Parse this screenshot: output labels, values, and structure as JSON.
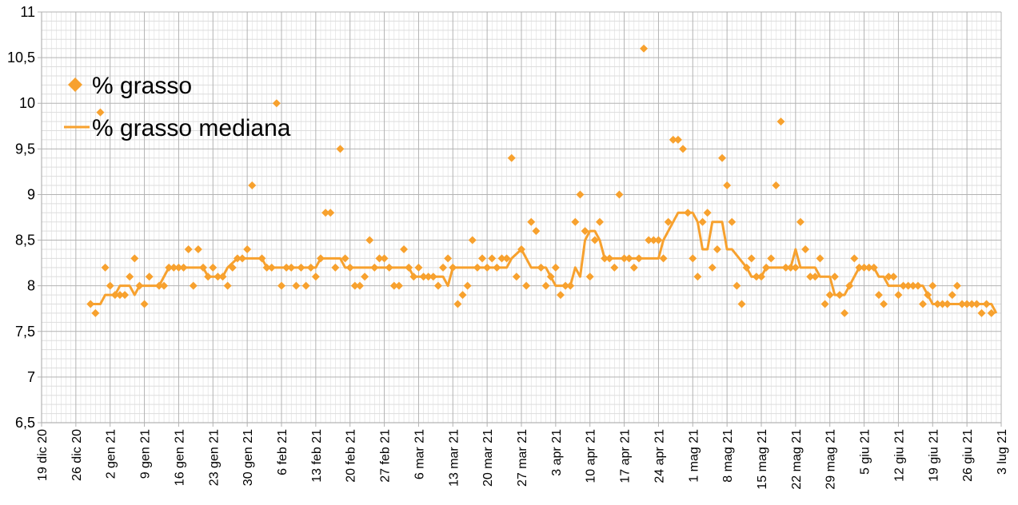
{
  "chart_data": {
    "type": "line",
    "title": "",
    "xlabel": "",
    "ylabel": "",
    "grid": true,
    "legend_position": "top-left",
    "colors": {
      "series": "#f7a12e",
      "grid_major": "#b3b3b3",
      "grid_minor": "#dddddd",
      "axis": "#b3b3b3"
    },
    "xlim": [
      "2020-12-19",
      "2021-07-03"
    ],
    "ylim": [
      6.5,
      11
    ],
    "y_ticks": [
      "6,5",
      "7",
      "7,5",
      "8",
      "8,5",
      "9",
      "9,5",
      "10",
      "10,5",
      "11"
    ],
    "x_tick_labels": [
      "19 dic 20",
      "26 dic 20",
      "2 gen 21",
      "9 gen 21",
      "16 gen 21",
      "23 gen 21",
      "30 gen 21",
      "6 feb 21",
      "13 feb 21",
      "20 feb 21",
      "27 feb 21",
      "6 mar 21",
      "13 mar 21",
      "20 mar 21",
      "27 mar 21",
      "3 apr 21",
      "10 apr 21",
      "17 apr 21",
      "24 apr 21",
      "1 mag 21",
      "8 mag 21",
      "15 mag 21",
      "22 mag 21",
      "29 mag 21",
      "5 giu 21",
      "12 giu 21",
      "19 giu 21",
      "26 giu 21",
      "3 lug 21"
    ],
    "x_tick_dates": [
      "2020-12-19",
      "2020-12-26",
      "2021-01-02",
      "2021-01-09",
      "2021-01-16",
      "2021-01-23",
      "2021-01-30",
      "2021-02-06",
      "2021-02-13",
      "2021-02-20",
      "2021-02-27",
      "2021-03-06",
      "2021-03-13",
      "2021-03-20",
      "2021-03-27",
      "2021-04-03",
      "2021-04-10",
      "2021-04-17",
      "2021-04-24",
      "2021-05-01",
      "2021-05-08",
      "2021-05-15",
      "2021-05-22",
      "2021-05-29",
      "2021-06-05",
      "2021-06-12",
      "2021-06-19",
      "2021-06-26",
      "2021-07-03"
    ],
    "series": [
      {
        "name": "% grasso",
        "style": "markers-diamond",
        "points": [
          [
            "2020-12-29",
            7.8
          ],
          [
            "2020-12-30",
            7.7
          ],
          [
            "2020-12-31",
            9.9
          ],
          [
            "2021-01-01",
            8.2
          ],
          [
            "2021-01-02",
            8.0
          ],
          [
            "2021-01-03",
            7.9
          ],
          [
            "2021-01-04",
            7.9
          ],
          [
            "2021-01-05",
            7.9
          ],
          [
            "2021-01-06",
            8.1
          ],
          [
            "2021-01-07",
            8.3
          ],
          [
            "2021-01-08",
            8.0
          ],
          [
            "2021-01-09",
            7.8
          ],
          [
            "2021-01-10",
            8.1
          ],
          [
            "2021-01-12",
            8.0
          ],
          [
            "2021-01-13",
            8.0
          ],
          [
            "2021-01-14",
            8.2
          ],
          [
            "2021-01-15",
            8.2
          ],
          [
            "2021-01-16",
            8.2
          ],
          [
            "2021-01-17",
            8.2
          ],
          [
            "2021-01-18",
            8.4
          ],
          [
            "2021-01-19",
            8.0
          ],
          [
            "2021-01-20",
            8.4
          ],
          [
            "2021-01-21",
            8.2
          ],
          [
            "2021-01-22",
            8.1
          ],
          [
            "2021-01-23",
            8.2
          ],
          [
            "2021-01-24",
            8.1
          ],
          [
            "2021-01-25",
            8.1
          ],
          [
            "2021-01-26",
            8.0
          ],
          [
            "2021-01-27",
            8.2
          ],
          [
            "2021-01-28",
            8.3
          ],
          [
            "2021-01-29",
            8.3
          ],
          [
            "2021-01-30",
            8.4
          ],
          [
            "2021-01-31",
            9.1
          ],
          [
            "2021-02-02",
            8.3
          ],
          [
            "2021-02-03",
            8.2
          ],
          [
            "2021-02-04",
            8.2
          ],
          [
            "2021-02-05",
            10.0
          ],
          [
            "2021-02-06",
            8.0
          ],
          [
            "2021-02-07",
            8.2
          ],
          [
            "2021-02-08",
            8.2
          ],
          [
            "2021-02-09",
            8.0
          ],
          [
            "2021-02-10",
            8.2
          ],
          [
            "2021-02-11",
            8.0
          ],
          [
            "2021-02-12",
            8.2
          ],
          [
            "2021-02-13",
            8.1
          ],
          [
            "2021-02-14",
            8.3
          ],
          [
            "2021-02-15",
            8.8
          ],
          [
            "2021-02-16",
            8.8
          ],
          [
            "2021-02-17",
            8.2
          ],
          [
            "2021-02-18",
            9.5
          ],
          [
            "2021-02-19",
            8.3
          ],
          [
            "2021-02-20",
            8.2
          ],
          [
            "2021-02-21",
            8.0
          ],
          [
            "2021-02-22",
            8.0
          ],
          [
            "2021-02-23",
            8.1
          ],
          [
            "2021-02-24",
            8.5
          ],
          [
            "2021-02-25",
            8.2
          ],
          [
            "2021-02-26",
            8.3
          ],
          [
            "2021-02-27",
            8.3
          ],
          [
            "2021-02-28",
            8.2
          ],
          [
            "2021-03-01",
            8.0
          ],
          [
            "2021-03-02",
            8.0
          ],
          [
            "2021-03-03",
            8.4
          ],
          [
            "2021-03-04",
            8.2
          ],
          [
            "2021-03-05",
            8.1
          ],
          [
            "2021-03-06",
            8.2
          ],
          [
            "2021-03-07",
            8.1
          ],
          [
            "2021-03-08",
            8.1
          ],
          [
            "2021-03-09",
            8.1
          ],
          [
            "2021-03-10",
            8.0
          ],
          [
            "2021-03-11",
            8.2
          ],
          [
            "2021-03-12",
            8.3
          ],
          [
            "2021-03-13",
            8.2
          ],
          [
            "2021-03-14",
            7.8
          ],
          [
            "2021-03-15",
            7.9
          ],
          [
            "2021-03-16",
            8.0
          ],
          [
            "2021-03-17",
            8.5
          ],
          [
            "2021-03-18",
            8.2
          ],
          [
            "2021-03-19",
            8.3
          ],
          [
            "2021-03-20",
            8.2
          ],
          [
            "2021-03-21",
            8.3
          ],
          [
            "2021-03-22",
            8.2
          ],
          [
            "2021-03-23",
            8.3
          ],
          [
            "2021-03-24",
            8.3
          ],
          [
            "2021-03-25",
            9.4
          ],
          [
            "2021-03-26",
            8.1
          ],
          [
            "2021-03-27",
            8.4
          ],
          [
            "2021-03-28",
            8.0
          ],
          [
            "2021-03-29",
            8.7
          ],
          [
            "2021-03-30",
            8.6
          ],
          [
            "2021-03-31",
            8.2
          ],
          [
            "2021-04-01",
            8.0
          ],
          [
            "2021-04-02",
            8.1
          ],
          [
            "2021-04-03",
            8.2
          ],
          [
            "2021-04-04",
            7.9
          ],
          [
            "2021-04-05",
            8.0
          ],
          [
            "2021-04-06",
            8.0
          ],
          [
            "2021-04-07",
            8.7
          ],
          [
            "2021-04-08",
            9.0
          ],
          [
            "2021-04-09",
            8.6
          ],
          [
            "2021-04-10",
            8.1
          ],
          [
            "2021-04-11",
            8.5
          ],
          [
            "2021-04-12",
            8.7
          ],
          [
            "2021-04-13",
            8.3
          ],
          [
            "2021-04-14",
            8.3
          ],
          [
            "2021-04-15",
            8.2
          ],
          [
            "2021-04-16",
            9.0
          ],
          [
            "2021-04-17",
            8.3
          ],
          [
            "2021-04-18",
            8.3
          ],
          [
            "2021-04-19",
            8.2
          ],
          [
            "2021-04-20",
            8.3
          ],
          [
            "2021-04-21",
            10.6
          ],
          [
            "2021-04-22",
            8.5
          ],
          [
            "2021-04-23",
            8.5
          ],
          [
            "2021-04-24",
            8.5
          ],
          [
            "2021-04-25",
            8.3
          ],
          [
            "2021-04-26",
            8.7
          ],
          [
            "2021-04-27",
            9.6
          ],
          [
            "2021-04-28",
            9.6
          ],
          [
            "2021-04-29",
            9.5
          ],
          [
            "2021-04-30",
            8.8
          ],
          [
            "2021-05-01",
            8.3
          ],
          [
            "2021-05-02",
            8.1
          ],
          [
            "2021-05-03",
            8.7
          ],
          [
            "2021-05-04",
            8.8
          ],
          [
            "2021-05-05",
            8.2
          ],
          [
            "2021-05-06",
            8.4
          ],
          [
            "2021-05-07",
            9.4
          ],
          [
            "2021-05-08",
            9.1
          ],
          [
            "2021-05-09",
            8.7
          ],
          [
            "2021-05-10",
            8.0
          ],
          [
            "2021-05-11",
            7.8
          ],
          [
            "2021-05-12",
            8.2
          ],
          [
            "2021-05-13",
            8.3
          ],
          [
            "2021-05-14",
            8.1
          ],
          [
            "2021-05-15",
            8.1
          ],
          [
            "2021-05-16",
            8.2
          ],
          [
            "2021-05-17",
            8.3
          ],
          [
            "2021-05-18",
            9.1
          ],
          [
            "2021-05-19",
            9.8
          ],
          [
            "2021-05-20",
            8.2
          ],
          [
            "2021-05-21",
            8.2
          ],
          [
            "2021-05-22",
            8.2
          ],
          [
            "2021-05-23",
            8.7
          ],
          [
            "2021-05-24",
            8.4
          ],
          [
            "2021-05-25",
            8.1
          ],
          [
            "2021-05-26",
            8.1
          ],
          [
            "2021-05-27",
            8.3
          ],
          [
            "2021-05-28",
            7.8
          ],
          [
            "2021-05-29",
            7.9
          ],
          [
            "2021-05-30",
            8.1
          ],
          [
            "2021-05-31",
            7.9
          ],
          [
            "2021-06-01",
            7.7
          ],
          [
            "2021-06-02",
            8.0
          ],
          [
            "2021-06-03",
            8.3
          ],
          [
            "2021-06-04",
            8.2
          ],
          [
            "2021-06-05",
            8.2
          ],
          [
            "2021-06-06",
            8.2
          ],
          [
            "2021-06-07",
            8.2
          ],
          [
            "2021-06-08",
            7.9
          ],
          [
            "2021-06-09",
            7.8
          ],
          [
            "2021-06-10",
            8.1
          ],
          [
            "2021-06-11",
            8.1
          ],
          [
            "2021-06-12",
            7.9
          ],
          [
            "2021-06-13",
            8.0
          ],
          [
            "2021-06-14",
            8.0
          ],
          [
            "2021-06-15",
            8.0
          ],
          [
            "2021-06-16",
            8.0
          ],
          [
            "2021-06-17",
            7.8
          ],
          [
            "2021-06-18",
            7.9
          ],
          [
            "2021-06-19",
            8.0
          ],
          [
            "2021-06-20",
            7.8
          ],
          [
            "2021-06-21",
            7.8
          ],
          [
            "2021-06-22",
            7.8
          ],
          [
            "2021-06-23",
            7.9
          ],
          [
            "2021-06-24",
            8.0
          ],
          [
            "2021-06-25",
            7.8
          ],
          [
            "2021-06-26",
            7.8
          ],
          [
            "2021-06-27",
            7.8
          ],
          [
            "2021-06-28",
            7.8
          ],
          [
            "2021-06-29",
            7.7
          ],
          [
            "2021-06-30",
            7.8
          ],
          [
            "2021-07-01",
            7.7
          ]
        ]
      },
      {
        "name": "% grasso mediana",
        "style": "line",
        "points": [
          [
            "2020-12-29",
            7.8
          ],
          [
            "2020-12-31",
            7.8
          ],
          [
            "2021-01-01",
            7.9
          ],
          [
            "2021-01-03",
            7.9
          ],
          [
            "2021-01-04",
            8.0
          ],
          [
            "2021-01-06",
            8.0
          ],
          [
            "2021-01-07",
            7.9
          ],
          [
            "2021-01-08",
            8.0
          ],
          [
            "2021-01-12",
            8.0
          ],
          [
            "2021-01-13",
            8.1
          ],
          [
            "2021-01-14",
            8.2
          ],
          [
            "2021-01-21",
            8.2
          ],
          [
            "2021-01-22",
            8.1
          ],
          [
            "2021-01-25",
            8.1
          ],
          [
            "2021-01-26",
            8.2
          ],
          [
            "2021-01-28",
            8.3
          ],
          [
            "2021-02-02",
            8.3
          ],
          [
            "2021-02-03",
            8.2
          ],
          [
            "2021-02-13",
            8.2
          ],
          [
            "2021-02-14",
            8.3
          ],
          [
            "2021-02-18",
            8.3
          ],
          [
            "2021-02-19",
            8.2
          ],
          [
            "2021-03-04",
            8.2
          ],
          [
            "2021-03-05",
            8.1
          ],
          [
            "2021-03-11",
            8.1
          ],
          [
            "2021-03-12",
            8.0
          ],
          [
            "2021-03-13",
            8.2
          ],
          [
            "2021-03-24",
            8.2
          ],
          [
            "2021-03-25",
            8.3
          ],
          [
            "2021-03-27",
            8.4
          ],
          [
            "2021-03-29",
            8.2
          ],
          [
            "2021-04-01",
            8.2
          ],
          [
            "2021-04-02",
            8.1
          ],
          [
            "2021-04-03",
            8.0
          ],
          [
            "2021-04-06",
            8.0
          ],
          [
            "2021-04-07",
            8.2
          ],
          [
            "2021-04-08",
            8.1
          ],
          [
            "2021-04-09",
            8.5
          ],
          [
            "2021-04-10",
            8.6
          ],
          [
            "2021-04-11",
            8.6
          ],
          [
            "2021-04-12",
            8.5
          ],
          [
            "2021-04-13",
            8.3
          ],
          [
            "2021-04-24",
            8.3
          ],
          [
            "2021-04-25",
            8.5
          ],
          [
            "2021-04-27",
            8.7
          ],
          [
            "2021-04-28",
            8.8
          ],
          [
            "2021-05-01",
            8.8
          ],
          [
            "2021-05-02",
            8.7
          ],
          [
            "2021-05-03",
            8.4
          ],
          [
            "2021-05-04",
            8.4
          ],
          [
            "2021-05-05",
            8.7
          ],
          [
            "2021-05-07",
            8.7
          ],
          [
            "2021-05-08",
            8.4
          ],
          [
            "2021-05-09",
            8.4
          ],
          [
            "2021-05-12",
            8.2
          ],
          [
            "2021-05-13",
            8.1
          ],
          [
            "2021-05-15",
            8.1
          ],
          [
            "2021-05-16",
            8.2
          ],
          [
            "2021-05-21",
            8.2
          ],
          [
            "2021-05-22",
            8.4
          ],
          [
            "2021-05-23",
            8.2
          ],
          [
            "2021-05-26",
            8.2
          ],
          [
            "2021-05-27",
            8.1
          ],
          [
            "2021-05-29",
            8.1
          ],
          [
            "2021-05-30",
            7.9
          ],
          [
            "2021-06-01",
            7.9
          ],
          [
            "2021-06-02",
            8.0
          ],
          [
            "2021-06-03",
            8.1
          ],
          [
            "2021-06-04",
            8.2
          ],
          [
            "2021-06-07",
            8.2
          ],
          [
            "2021-06-08",
            8.1
          ],
          [
            "2021-06-09",
            8.1
          ],
          [
            "2021-06-10",
            8.0
          ],
          [
            "2021-06-17",
            8.0
          ],
          [
            "2021-06-18",
            7.9
          ],
          [
            "2021-06-19",
            7.8
          ],
          [
            "2021-06-23",
            7.8
          ],
          [
            "2021-06-24",
            7.8
          ],
          [
            "2021-07-01",
            7.8
          ],
          [
            "2021-07-02",
            7.7
          ]
        ]
      }
    ]
  }
}
